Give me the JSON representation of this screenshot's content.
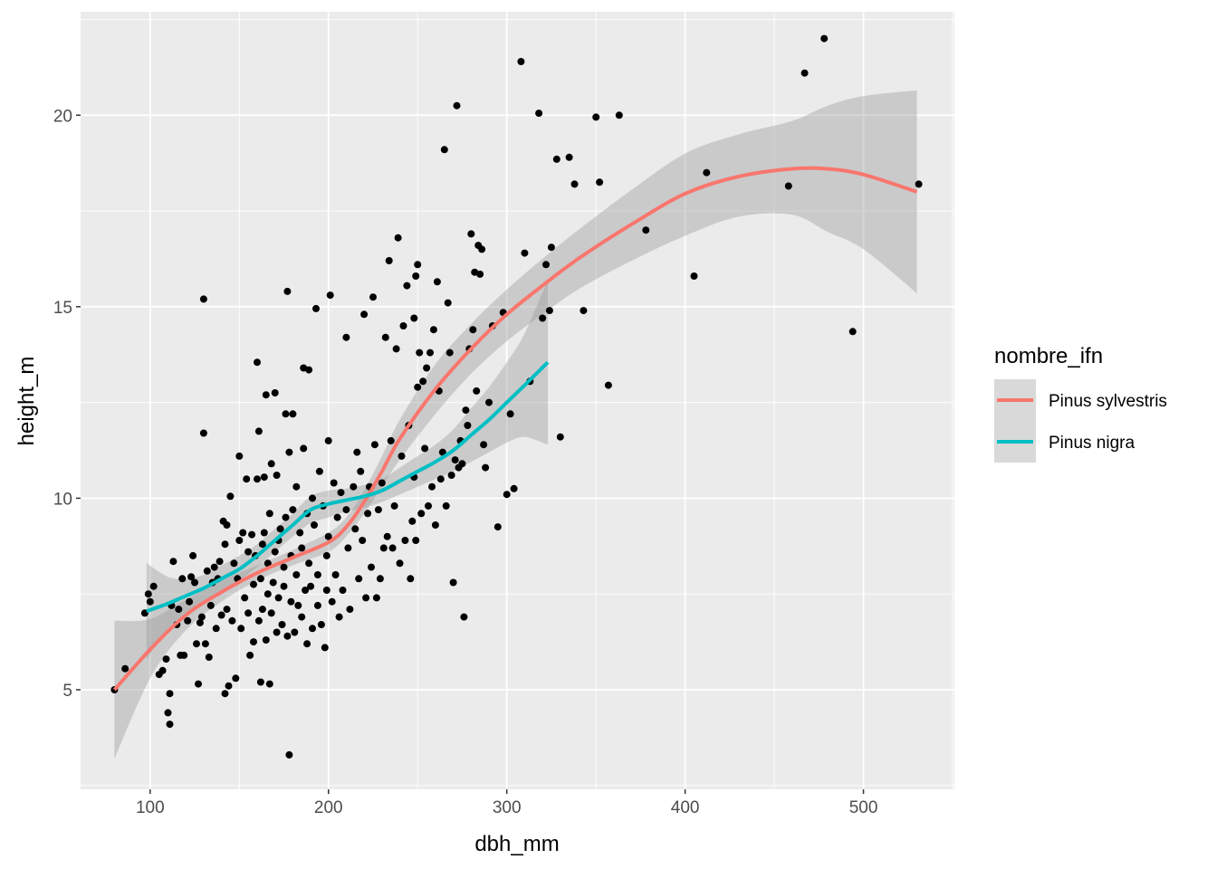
{
  "chart_data": {
    "type": "scatter",
    "title": "",
    "xlabel": "dbh_mm",
    "ylabel": "height_m",
    "xlim": [
      61,
      551
    ],
    "ylim": [
      2.4,
      22.7
    ],
    "x_ticks": [
      100,
      200,
      300,
      400,
      500
    ],
    "x_tick_labels": [
      "100",
      "200",
      "300",
      "400",
      "500"
    ],
    "y_ticks": [
      5,
      10,
      15,
      20
    ],
    "y_tick_labels": [
      "5",
      "10",
      "15",
      "20"
    ],
    "grid": true,
    "legend_position": "right",
    "legend_title": "nombre_ifn",
    "points": [
      [
        80,
        5
      ],
      [
        86,
        5.55
      ],
      [
        97,
        7
      ],
      [
        99,
        7.5
      ],
      [
        100,
        7.3
      ],
      [
        102,
        7.7
      ],
      [
        105,
        5.4
      ],
      [
        107,
        5.5
      ],
      [
        109,
        5.8
      ],
      [
        110,
        4.4
      ],
      [
        111,
        4.1
      ],
      [
        111,
        4.9
      ],
      [
        112,
        7.2
      ],
      [
        113,
        8.35
      ],
      [
        115,
        6.7
      ],
      [
        116,
        7.1
      ],
      [
        117,
        5.9
      ],
      [
        118,
        7.9
      ],
      [
        119,
        5.9
      ],
      [
        121,
        6.8
      ],
      [
        122,
        7.3
      ],
      [
        123,
        7.95
      ],
      [
        124,
        8.5
      ],
      [
        125,
        7.8
      ],
      [
        126,
        6.2
      ],
      [
        127,
        5.15
      ],
      [
        128,
        6.75
      ],
      [
        129,
        6.9
      ],
      [
        130,
        11.7
      ],
      [
        130,
        15.2
      ],
      [
        131,
        6.2
      ],
      [
        132,
        8.1
      ],
      [
        133,
        5.85
      ],
      [
        134,
        7.2
      ],
      [
        135,
        7.8
      ],
      [
        136,
        8.2
      ],
      [
        137,
        6.6
      ],
      [
        138,
        7.9
      ],
      [
        139,
        8.35
      ],
      [
        140,
        6.95
      ],
      [
        141,
        9.4
      ],
      [
        142,
        8.8
      ],
      [
        142,
        4.9
      ],
      [
        143,
        9.3
      ],
      [
        143,
        7.1
      ],
      [
        144,
        5.1
      ],
      [
        145,
        10.05
      ],
      [
        146,
        6.8
      ],
      [
        147,
        8.3
      ],
      [
        148,
        5.3
      ],
      [
        149,
        7.9
      ],
      [
        150,
        11.1
      ],
      [
        150,
        8.9
      ],
      [
        151,
        6.6
      ],
      [
        152,
        9.1
      ],
      [
        153,
        7.4
      ],
      [
        154,
        10.5
      ],
      [
        155,
        7.0
      ],
      [
        155,
        8.6
      ],
      [
        156,
        5.9
      ],
      [
        157,
        9.05
      ],
      [
        158,
        7.75
      ],
      [
        158,
        6.25
      ],
      [
        159,
        8.5
      ],
      [
        160,
        10.5
      ],
      [
        160,
        13.55
      ],
      [
        161,
        11.75
      ],
      [
        161,
        6.8
      ],
      [
        162,
        7.9
      ],
      [
        162,
        5.2
      ],
      [
        163,
        8.8
      ],
      [
        163,
        7.1
      ],
      [
        164,
        10.55
      ],
      [
        164,
        9.1
      ],
      [
        165,
        12.7
      ],
      [
        165,
        6.3
      ],
      [
        166,
        7.5
      ],
      [
        166,
        8.3
      ],
      [
        167,
        5.15
      ],
      [
        167,
        9.6
      ],
      [
        168,
        7.0
      ],
      [
        168,
        10.9
      ],
      [
        169,
        7.8
      ],
      [
        170,
        12.75
      ],
      [
        170,
        8.6
      ],
      [
        171,
        6.5
      ],
      [
        171,
        10.6
      ],
      [
        172,
        7.4
      ],
      [
        172,
        8.9
      ],
      [
        173,
        9.2
      ],
      [
        174,
        6.7
      ],
      [
        175,
        7.7
      ],
      [
        175,
        8.2
      ],
      [
        176,
        12.2
      ],
      [
        176,
        9.5
      ],
      [
        177,
        15.4
      ],
      [
        177,
        6.4
      ],
      [
        178,
        3.3
      ],
      [
        178,
        11.2
      ],
      [
        179,
        8.5
      ],
      [
        179,
        7.3
      ],
      [
        180,
        12.2
      ],
      [
        180,
        9.7
      ],
      [
        181,
        6.5
      ],
      [
        182,
        8.0
      ],
      [
        182,
        10.3
      ],
      [
        183,
        7.2
      ],
      [
        184,
        9.1
      ],
      [
        185,
        8.7
      ],
      [
        185,
        6.9
      ],
      [
        186,
        13.4
      ],
      [
        186,
        11.3
      ],
      [
        187,
        7.6
      ],
      [
        188,
        9.6
      ],
      [
        188,
        6.2
      ],
      [
        189,
        13.35
      ],
      [
        189,
        8.3
      ],
      [
        190,
        7.7
      ],
      [
        191,
        10.0
      ],
      [
        191,
        6.6
      ],
      [
        192,
        9.3
      ],
      [
        193,
        14.95
      ],
      [
        194,
        8.0
      ],
      [
        194,
        7.2
      ],
      [
        195,
        10.7
      ],
      [
        196,
        6.7
      ],
      [
        197,
        9.8
      ],
      [
        198,
        6.1
      ],
      [
        199,
        8.5
      ],
      [
        199,
        7.6
      ],
      [
        200,
        11.5
      ],
      [
        200,
        9.0
      ],
      [
        201,
        15.3
      ],
      [
        202,
        7.3
      ],
      [
        203,
        10.4
      ],
      [
        204,
        8.0
      ],
      [
        205,
        9.5
      ],
      [
        206,
        6.9
      ],
      [
        207,
        10.15
      ],
      [
        208,
        7.6
      ],
      [
        210,
        14.2
      ],
      [
        210,
        9.7
      ],
      [
        211,
        8.7
      ],
      [
        212,
        7.1
      ],
      [
        214,
        10.3
      ],
      [
        215,
        9.2
      ],
      [
        216,
        11.2
      ],
      [
        217,
        7.9
      ],
      [
        218,
        10.7
      ],
      [
        219,
        8.9
      ],
      [
        220,
        14.8
      ],
      [
        221,
        7.4
      ],
      [
        222,
        9.6
      ],
      [
        223,
        10.3
      ],
      [
        224,
        8.2
      ],
      [
        225,
        15.25
      ],
      [
        226,
        11.4
      ],
      [
        227,
        7.4
      ],
      [
        228,
        9.7
      ],
      [
        229,
        7.9
      ],
      [
        230,
        10.4
      ],
      [
        231,
        8.7
      ],
      [
        232,
        14.2
      ],
      [
        233,
        9.0
      ],
      [
        234,
        16.2
      ],
      [
        235,
        11.5
      ],
      [
        236,
        8.7
      ],
      [
        237,
        9.8
      ],
      [
        238,
        13.9
      ],
      [
        239,
        16.8
      ],
      [
        240,
        8.3
      ],
      [
        241,
        11.1
      ],
      [
        242,
        14.5
      ],
      [
        243,
        8.9
      ],
      [
        244,
        15.55
      ],
      [
        245,
        11.9
      ],
      [
        246,
        7.9
      ],
      [
        247,
        9.4
      ],
      [
        248,
        14.7
      ],
      [
        248,
        10.55
      ],
      [
        249,
        15.8
      ],
      [
        249,
        8.9
      ],
      [
        250,
        16.1
      ],
      [
        250,
        12.9
      ],
      [
        251,
        13.8
      ],
      [
        252,
        9.6
      ],
      [
        253,
        13.05
      ],
      [
        254,
        11.3
      ],
      [
        255,
        13.4
      ],
      [
        256,
        9.8
      ],
      [
        257,
        13.8
      ],
      [
        258,
        10.3
      ],
      [
        259,
        14.4
      ],
      [
        260,
        9.3
      ],
      [
        261,
        15.65
      ],
      [
        262,
        12.8
      ],
      [
        263,
        10.5
      ],
      [
        264,
        11.2
      ],
      [
        265,
        19.1
      ],
      [
        266,
        9.8
      ],
      [
        267,
        15.1
      ],
      [
        268,
        13.8
      ],
      [
        269,
        10.6
      ],
      [
        270,
        7.8
      ],
      [
        271,
        11.0
      ],
      [
        272,
        20.25
      ],
      [
        273,
        10.8
      ],
      [
        274,
        11.5
      ],
      [
        275,
        10.9
      ],
      [
        276,
        6.9
      ],
      [
        277,
        12.3
      ],
      [
        278,
        11.9
      ],
      [
        279,
        13.9
      ],
      [
        280,
        16.9
      ],
      [
        281,
        14.4
      ],
      [
        282,
        15.9
      ],
      [
        283,
        12.8
      ],
      [
        284,
        16.6
      ],
      [
        285,
        15.85
      ],
      [
        286,
        16.5
      ],
      [
        287,
        11.4
      ],
      [
        288,
        10.8
      ],
      [
        290,
        12.5
      ],
      [
        292,
        14.5
      ],
      [
        295,
        9.25
      ],
      [
        298,
        14.85
      ],
      [
        300,
        10.1
      ],
      [
        302,
        12.2
      ],
      [
        304,
        10.25
      ],
      [
        308,
        21.4
      ],
      [
        310,
        16.4
      ],
      [
        313,
        13.05
      ],
      [
        318,
        20.05
      ],
      [
        320,
        14.7
      ],
      [
        322,
        16.1
      ],
      [
        324,
        14.9
      ],
      [
        325,
        16.55
      ],
      [
        328,
        18.85
      ],
      [
        330,
        11.6
      ],
      [
        335,
        18.9
      ],
      [
        338,
        18.2
      ],
      [
        343,
        14.9
      ],
      [
        350,
        19.95
      ],
      [
        352,
        18.25
      ],
      [
        357,
        12.95
      ],
      [
        363,
        20.0
      ],
      [
        378,
        17.0
      ],
      [
        405,
        15.8
      ],
      [
        412,
        18.5
      ],
      [
        458,
        18.15
      ],
      [
        467,
        21.1
      ],
      [
        478,
        22.0
      ],
      [
        494,
        14.35
      ],
      [
        531,
        18.2
      ]
    ],
    "series": [
      {
        "name": "Pinus sylvestris",
        "color": "#f8766d",
        "x": [
          80,
          100,
          120,
          140,
          160,
          180,
          200,
          210,
          220,
          230,
          240,
          260,
          280,
          300,
          320,
          340,
          370,
          400,
          430,
          460,
          480,
          500,
          530
        ],
        "y": [
          5.0,
          6.05,
          6.95,
          7.55,
          8.05,
          8.45,
          8.85,
          9.25,
          9.9,
          10.7,
          11.55,
          12.85,
          13.9,
          14.8,
          15.55,
          16.25,
          17.15,
          17.95,
          18.4,
          18.6,
          18.6,
          18.45,
          18.0
        ],
        "ci_low": [
          3.2,
          5.3,
          6.55,
          7.3,
          7.85,
          8.25,
          8.6,
          9.0,
          9.6,
          10.3,
          11.0,
          12.2,
          13.25,
          14.1,
          14.8,
          15.45,
          16.2,
          16.85,
          17.35,
          17.4,
          16.95,
          16.5,
          15.35
        ],
        "ci_high": [
          6.8,
          6.85,
          7.35,
          7.85,
          8.25,
          8.65,
          9.1,
          9.5,
          10.2,
          11.1,
          12.05,
          13.5,
          14.55,
          15.45,
          16.25,
          17.0,
          18.05,
          19.0,
          19.5,
          19.85,
          20.25,
          20.5,
          20.65
        ]
      },
      {
        "name": "Pinus nigra",
        "color": "#00bfc4",
        "x": [
          98,
          110,
          120,
          130,
          140,
          150,
          160,
          170,
          180,
          190,
          200,
          210,
          220,
          230,
          240,
          250,
          260,
          270,
          280,
          290,
          300,
          310,
          323
        ],
        "y": [
          7.05,
          7.25,
          7.45,
          7.65,
          7.9,
          8.15,
          8.5,
          8.9,
          9.3,
          9.7,
          9.85,
          9.95,
          10.05,
          10.2,
          10.45,
          10.7,
          10.95,
          11.25,
          11.65,
          12.05,
          12.5,
          12.95,
          13.55
        ],
        "ci_low": [
          5.8,
          6.6,
          7.0,
          7.3,
          7.55,
          7.85,
          8.2,
          8.6,
          9.0,
          9.35,
          9.5,
          9.65,
          9.75,
          9.9,
          10.1,
          10.3,
          10.5,
          10.7,
          10.95,
          11.2,
          11.45,
          11.6,
          11.4
        ],
        "ci_high": [
          8.3,
          7.95,
          7.9,
          8.0,
          8.25,
          8.5,
          8.8,
          9.2,
          9.6,
          10.05,
          10.2,
          10.25,
          10.35,
          10.5,
          10.8,
          11.1,
          11.4,
          11.8,
          12.35,
          12.9,
          13.55,
          14.3,
          15.7
        ]
      }
    ]
  }
}
